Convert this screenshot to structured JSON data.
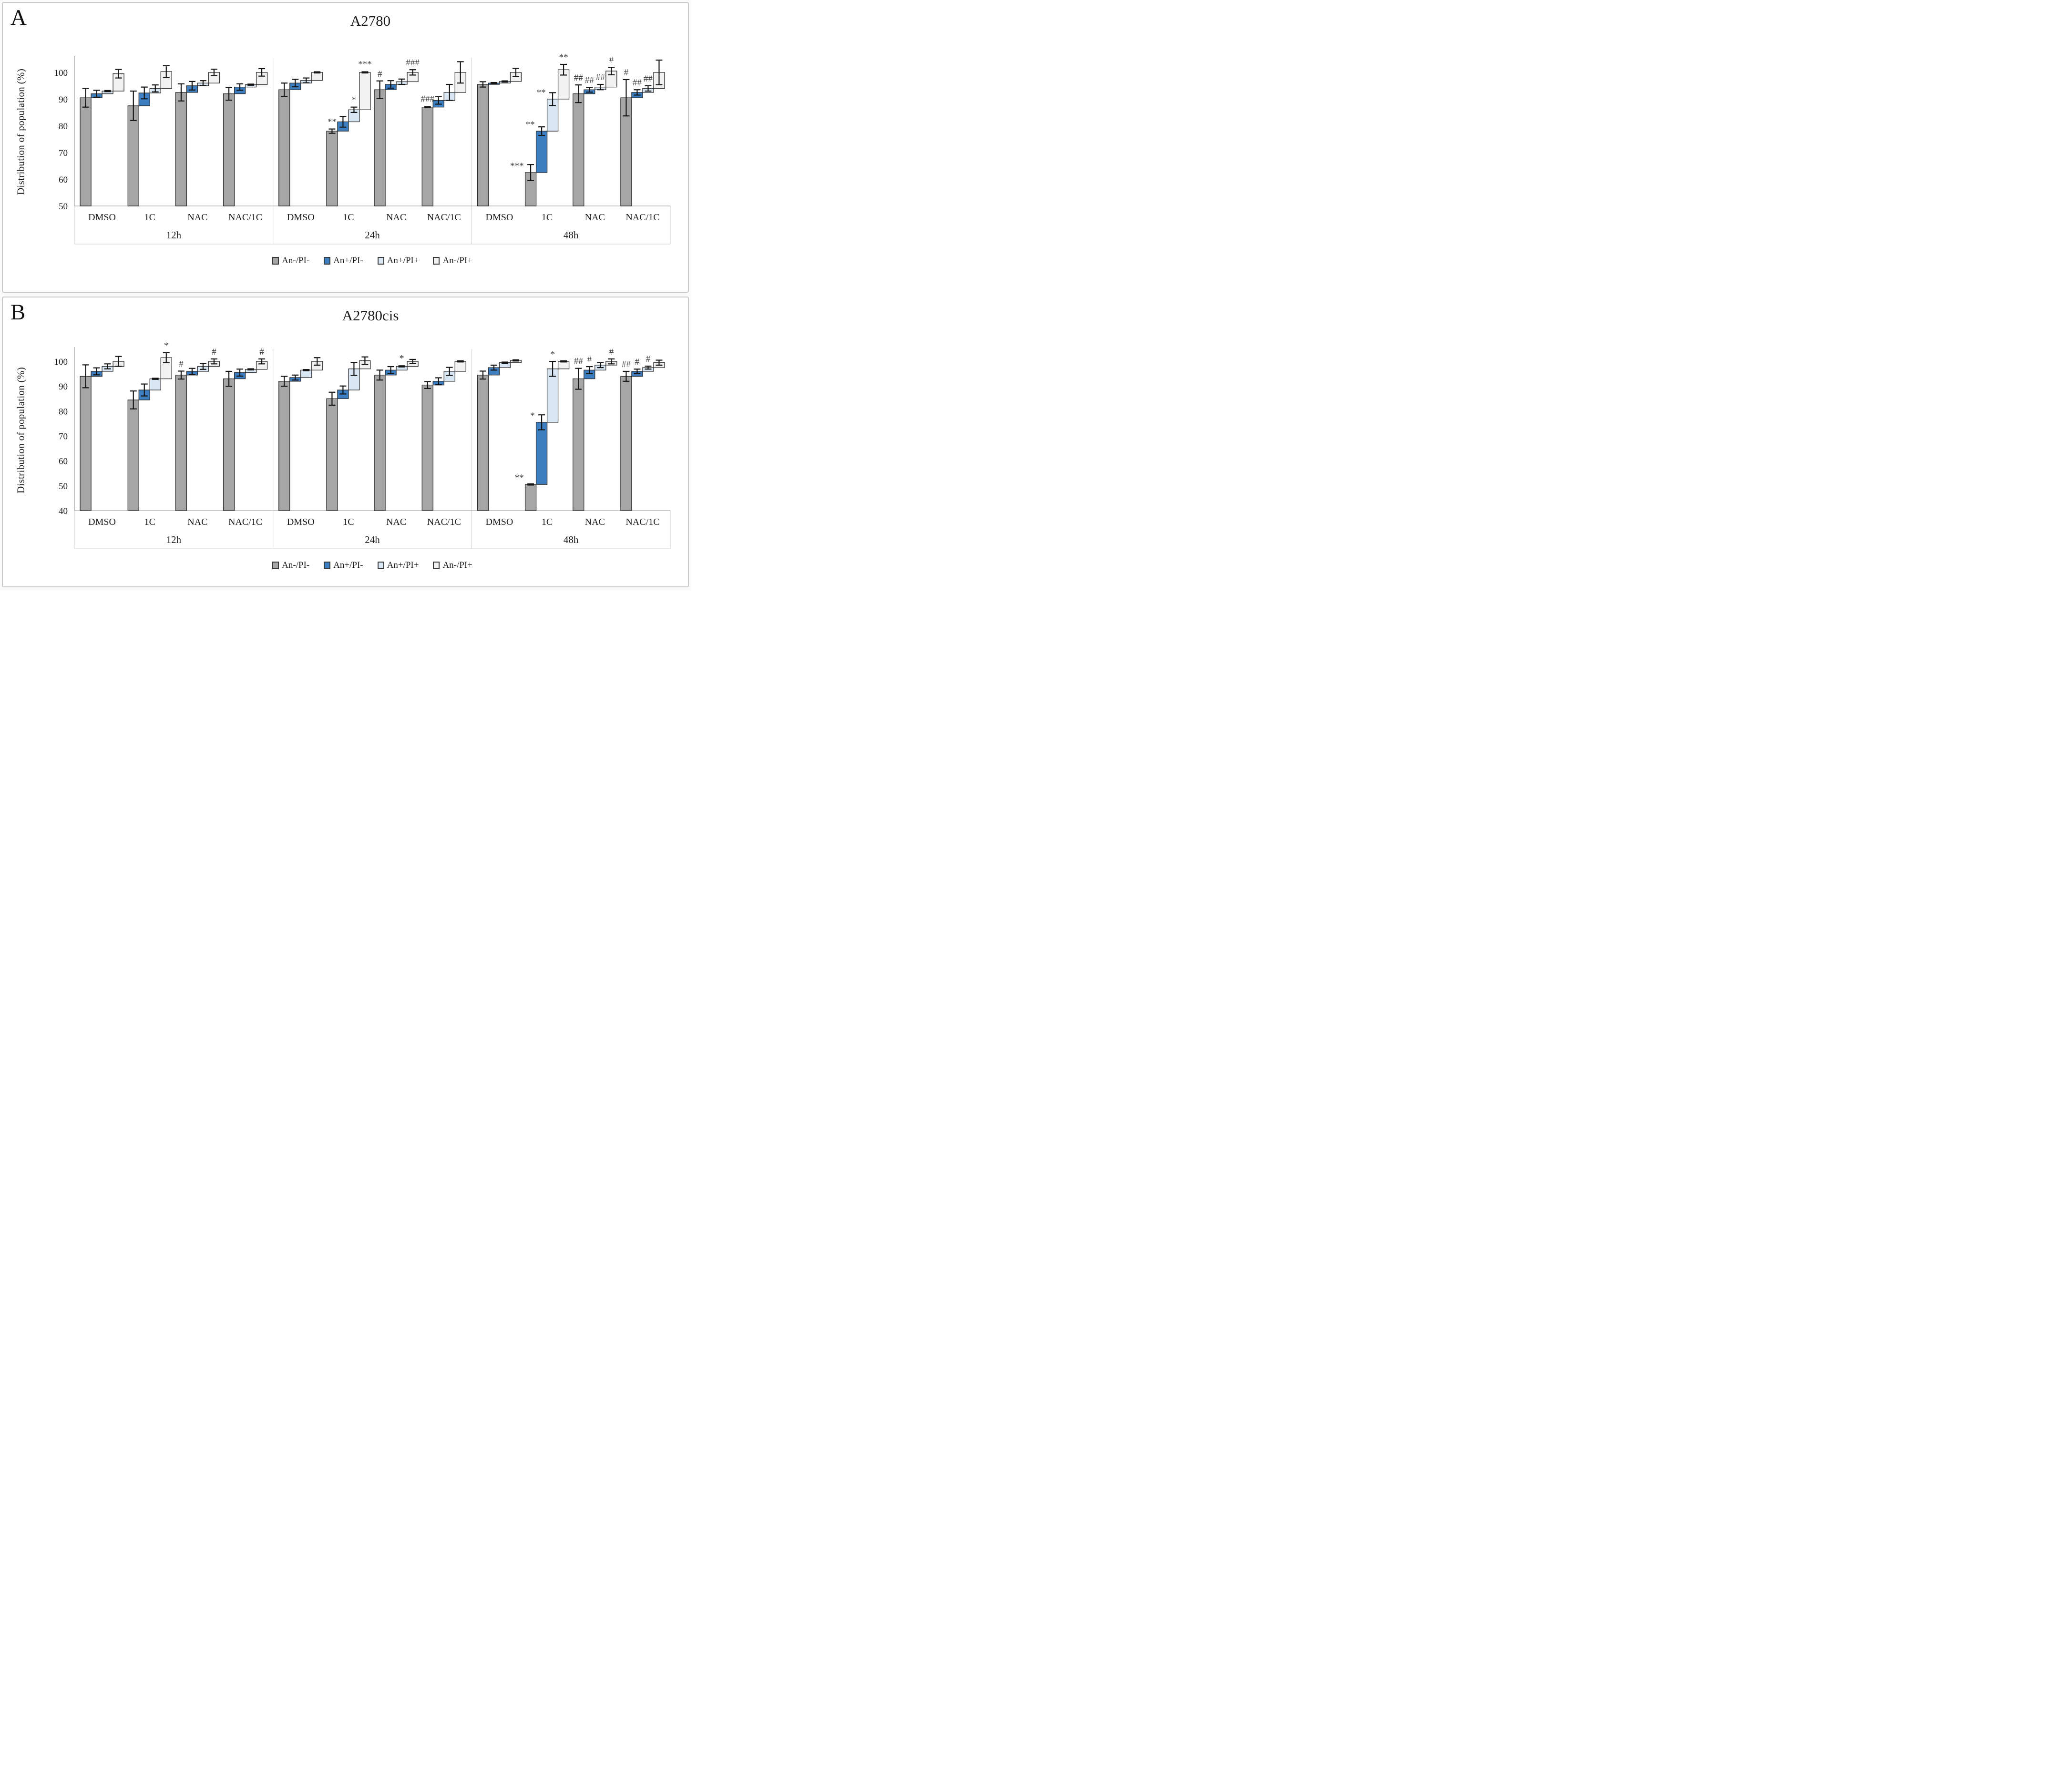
{
  "chart_data": [
    {
      "type": "bar",
      "subtype": "cumulative-waterfall",
      "letter": "A",
      "title": "A2780",
      "ylabel": "Distribution of population (%)",
      "ymin": 50,
      "ymax": 105.5,
      "yticks": [
        100,
        90,
        80,
        70,
        60,
        50
      ],
      "time_groups": [
        "12h",
        "24h",
        "48h"
      ],
      "treatments": [
        "DMSO",
        "1C",
        "NAC",
        "NAC/1C"
      ],
      "series": [
        {
          "name": "An-/PI-",
          "color": "#a6a6a6"
        },
        {
          "name": "An+/PI-",
          "color": "#3c7ec0"
        },
        {
          "name": "An+/PI+",
          "color": "#d9e7f5"
        },
        {
          "name": "An-/PI+",
          "color": "#f1f1f1"
        }
      ],
      "groups": [
        {
          "time": "12h",
          "treatment": "DMSO",
          "tops": [
            90.5,
            92,
            93,
            99.5
          ],
          "errs": [
            3.5,
            1.3,
            0.4,
            1.6
          ],
          "anns": [
            "",
            "",
            "",
            ""
          ],
          "ann_left": [
            0,
            0,
            0,
            0
          ]
        },
        {
          "time": "12h",
          "treatment": "1C",
          "tops": [
            87.5,
            92.3,
            94,
            100.3
          ],
          "errs": [
            5.5,
            2.2,
            1.3,
            2.2
          ],
          "anns": [
            "",
            "",
            "",
            ""
          ],
          "ann_left": [
            0,
            0,
            0,
            0
          ]
        },
        {
          "time": "12h",
          "treatment": "NAC",
          "tops": [
            92.5,
            95,
            96,
            100
          ],
          "errs": [
            3.2,
            1.6,
            0.9,
            1.2
          ],
          "anns": [
            "",
            "",
            "",
            ""
          ],
          "ann_left": [
            0,
            0,
            0,
            0
          ]
        },
        {
          "time": "12h",
          "treatment": "NAC/1C",
          "tops": [
            92,
            94.5,
            95.4,
            100
          ],
          "errs": [
            2.4,
            1.2,
            0.4,
            1.4
          ],
          "anns": [
            "",
            "",
            "",
            ""
          ],
          "ann_left": [
            0,
            0,
            0,
            0
          ]
        },
        {
          "time": "24h",
          "treatment": "DMSO",
          "tops": [
            93.5,
            96,
            97,
            100
          ],
          "errs": [
            2.5,
            1.4,
            0.9,
            0.4
          ],
          "anns": [
            "",
            "",
            "",
            ""
          ],
          "ann_left": [
            0,
            0,
            0,
            0
          ]
        },
        {
          "time": "24h",
          "treatment": "1C",
          "tops": [
            78,
            81.5,
            86,
            100
          ],
          "errs": [
            0.8,
            2.0,
            1.0,
            0.4
          ],
          "anns": [
            "**",
            "",
            "*",
            "***"
          ],
          "ann_left": [
            0,
            0,
            0,
            0
          ]
        },
        {
          "time": "24h",
          "treatment": "NAC",
          "tops": [
            93.5,
            95.5,
            96.5,
            100
          ],
          "errs": [
            3.3,
            1.4,
            1.0,
            1.0
          ],
          "anns": [
            "#",
            "",
            "",
            "###"
          ],
          "ann_left": [
            0,
            0,
            0,
            0
          ]
        },
        {
          "time": "24h",
          "treatment": "NAC/1C",
          "tops": [
            87,
            89.5,
            92.5,
            100
          ],
          "errs": [
            0.4,
            1.4,
            3.0,
            4.0
          ],
          "anns": [
            "###",
            "",
            "",
            ""
          ],
          "ann_left": [
            0,
            0,
            0,
            0
          ]
        },
        {
          "time": "48h",
          "treatment": "DMSO",
          "tops": [
            95.5,
            96,
            96.6,
            100
          ],
          "errs": [
            1.0,
            0.3,
            0.3,
            1.5
          ],
          "anns": [
            "",
            "",
            "",
            ""
          ],
          "ann_left": [
            0,
            0,
            0,
            0
          ]
        },
        {
          "time": "48h",
          "treatment": "1C",
          "tops": [
            62.5,
            78,
            90,
            101
          ],
          "errs": [
            3.0,
            1.6,
            2.4,
            2.0
          ],
          "anns": [
            "***",
            "**",
            "**",
            "**"
          ],
          "ann_left": [
            1,
            1,
            1,
            0
          ]
        },
        {
          "time": "48h",
          "treatment": "NAC",
          "tops": [
            92,
            93.5,
            94.5,
            100.5
          ],
          "errs": [
            3.3,
            0.9,
            1.0,
            1.4
          ],
          "anns": [
            "##",
            "##",
            "##",
            "#"
          ],
          "ann_left": [
            0,
            0,
            0,
            0
          ]
        },
        {
          "time": "48h",
          "treatment": "NAC/1C",
          "tops": [
            90.5,
            92.5,
            94,
            100
          ],
          "errs": [
            6.8,
            1.0,
            1.0,
            4.6
          ],
          "anns": [
            "#",
            "##",
            "##",
            ""
          ],
          "ann_left": [
            0,
            0,
            0,
            0
          ]
        }
      ]
    },
    {
      "type": "bar",
      "subtype": "cumulative-waterfall",
      "letter": "B",
      "title": "A2780cis",
      "ylabel": "Distribution of population (%)",
      "ymin": 40,
      "ymax": 105,
      "yticks": [
        100,
        90,
        80,
        70,
        60,
        50,
        40
      ],
      "time_groups": [
        "12h",
        "24h",
        "48h"
      ],
      "treatments": [
        "DMSO",
        "1C",
        "NAC",
        "NAC/1C"
      ],
      "series": [
        {
          "name": "An-/PI-",
          "color": "#a6a6a6"
        },
        {
          "name": "An+/PI-",
          "color": "#3c7ec0"
        },
        {
          "name": "An+/PI+",
          "color": "#d9e7f5"
        },
        {
          "name": "An-/PI+",
          "color": "#f1f1f1"
        }
      ],
      "groups": [
        {
          "time": "12h",
          "treatment": "DMSO",
          "tops": [
            94,
            96,
            98,
            100
          ],
          "errs": [
            4.6,
            1.4,
            1.0,
            2.0
          ],
          "anns": [
            "",
            "",
            "",
            ""
          ],
          "ann_left": [
            0,
            0,
            0,
            0
          ]
        },
        {
          "time": "12h",
          "treatment": "1C",
          "tops": [
            84.5,
            88.5,
            93,
            101.5
          ],
          "errs": [
            3.6,
            2.4,
            0.4,
            2.0
          ],
          "anns": [
            "",
            "",
            "",
            "*"
          ],
          "ann_left": [
            0,
            0,
            0,
            0
          ]
        },
        {
          "time": "12h",
          "treatment": "NAC",
          "tops": [
            94.5,
            96,
            98,
            100
          ],
          "errs": [
            1.6,
            1.2,
            1.2,
            1.0
          ],
          "anns": [
            "#",
            "",
            "",
            "#"
          ],
          "ann_left": [
            0,
            0,
            0,
            0
          ]
        },
        {
          "time": "12h",
          "treatment": "NAC/1C",
          "tops": [
            93,
            95.5,
            96.8,
            100
          ],
          "errs": [
            3.0,
            1.4,
            0.4,
            1.0
          ],
          "anns": [
            "",
            "",
            "",
            "#"
          ],
          "ann_left": [
            0,
            0,
            0,
            0
          ]
        },
        {
          "time": "24h",
          "treatment": "DMSO",
          "tops": [
            92,
            93.5,
            96.5,
            100
          ],
          "errs": [
            2.0,
            1.0,
            0.4,
            1.5
          ],
          "anns": [
            "",
            "",
            "",
            ""
          ],
          "ann_left": [
            0,
            0,
            0,
            0
          ]
        },
        {
          "time": "24h",
          "treatment": "1C",
          "tops": [
            85,
            88.5,
            97,
            100.3
          ],
          "errs": [
            2.6,
            1.6,
            2.6,
            1.5
          ],
          "anns": [
            "",
            "",
            "",
            ""
          ],
          "ann_left": [
            0,
            0,
            0,
            0
          ]
        },
        {
          "time": "24h",
          "treatment": "NAC",
          "tops": [
            94.5,
            96.5,
            98,
            100
          ],
          "errs": [
            2.0,
            1.4,
            0.4,
            0.8
          ],
          "anns": [
            "",
            "",
            "*",
            ""
          ],
          "ann_left": [
            0,
            0,
            0,
            0
          ]
        },
        {
          "time": "24h",
          "treatment": "NAC/1C",
          "tops": [
            90.5,
            92,
            96,
            100
          ],
          "errs": [
            1.4,
            1.4,
            1.6,
            0.4
          ],
          "anns": [
            "",
            "",
            "",
            ""
          ],
          "ann_left": [
            0,
            0,
            0,
            0
          ]
        },
        {
          "time": "48h",
          "treatment": "DMSO",
          "tops": [
            94.5,
            97.5,
            99.5,
            100.4
          ],
          "errs": [
            1.6,
            1.0,
            0.4,
            0.4
          ],
          "anns": [
            "",
            "",
            "",
            ""
          ],
          "ann_left": [
            0,
            0,
            0,
            0
          ]
        },
        {
          "time": "48h",
          "treatment": "1C",
          "tops": [
            50.5,
            75.5,
            97,
            100
          ],
          "errs": [
            0.4,
            3.0,
            3.0,
            0.4
          ],
          "anns": [
            "**",
            "*",
            "*",
            ""
          ],
          "ann_left": [
            1,
            1,
            0,
            0
          ]
        },
        {
          "time": "48h",
          "treatment": "NAC",
          "tops": [
            93,
            96.5,
            98.5,
            100
          ],
          "errs": [
            4.2,
            1.4,
            1.0,
            1.0
          ],
          "anns": [
            "##",
            "#",
            "",
            "#"
          ],
          "ann_left": [
            0,
            0,
            0,
            0
          ]
        },
        {
          "time": "48h",
          "treatment": "NAC/1C",
          "tops": [
            94,
            96,
            97.5,
            99.5
          ],
          "errs": [
            2.0,
            0.9,
            0.6,
            1.0
          ],
          "anns": [
            "##",
            "#",
            "#",
            ""
          ],
          "ann_left": [
            0,
            0,
            0,
            0
          ]
        }
      ]
    }
  ],
  "style": {
    "bar_border": "#2e2e2e",
    "error_color": "#151515",
    "annotation_color": "#3d3d3d",
    "axis_color": "#b5b5b5",
    "separator_color": "#d8d8d8",
    "text_color": "#1a1a1a"
  }
}
